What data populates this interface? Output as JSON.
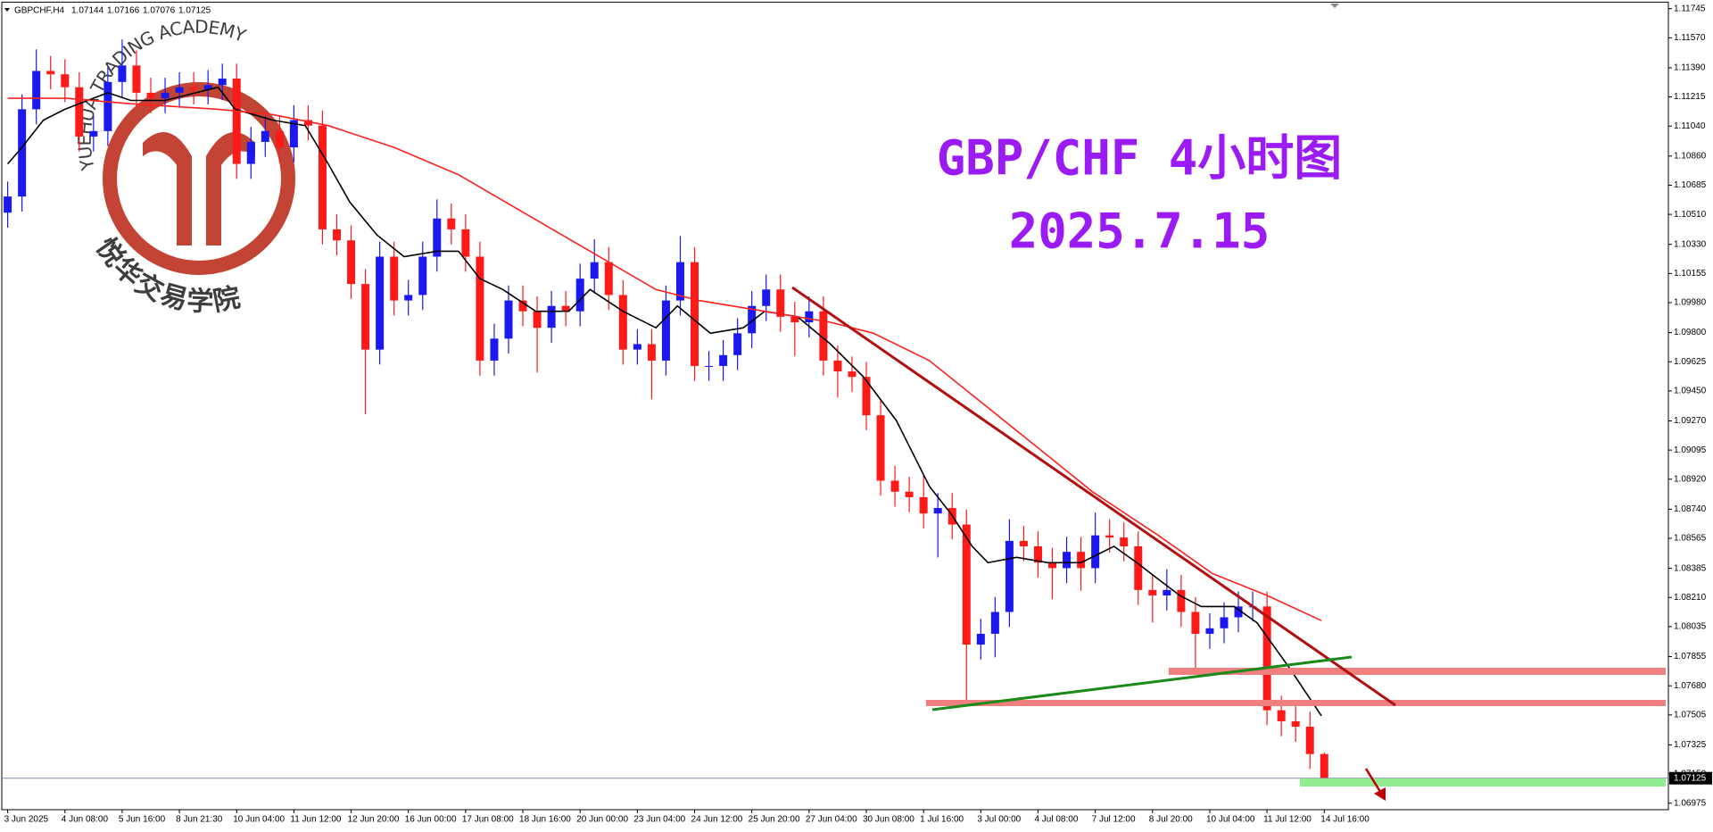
{
  "chart_data": {
    "type": "candlestick",
    "title": "GBP/CHF 4小时图",
    "subtitle": "2025.7.15",
    "header": {
      "symbol": "GBPCHF,H4",
      "open": 1.07144,
      "high": 1.07166,
      "low": 1.07076,
      "close": 1.07125
    },
    "watermark": {
      "text_en": "YUEHUA TRADING ACADEMY",
      "text_cn": "悦华交易学院"
    },
    "up_color": "#1a1af0",
    "down_color": "#ff1a1a",
    "categories": [
      "3 Jun 2025",
      null,
      null,
      null,
      "4 Jun 08:00",
      null,
      null,
      null,
      "5 Jun 16:00",
      null,
      null,
      null,
      "8 Jun 21:30",
      null,
      null,
      null,
      "10 Jun 04:00",
      null,
      null,
      null,
      "11 Jun 12:00",
      null,
      null,
      null,
      "12 Jun 20:00",
      null,
      null,
      null,
      "16 Jun 00:00",
      null,
      null,
      null,
      "17 Jun 08:00",
      null,
      null,
      null,
      "18 Jun 16:00",
      null,
      null,
      null,
      "20 Jun 00:00",
      null,
      null,
      null,
      "23 Jun 04:00",
      null,
      null,
      null,
      "24 Jun 12:00",
      null,
      null,
      null,
      "25 Jun 20:00",
      null,
      null,
      null,
      "27 Jun 04:00",
      null,
      null,
      null,
      "30 Jun 08:00",
      null,
      null,
      null,
      "1 Jul 16:00",
      null,
      null,
      null,
      "3 Jul 00:00",
      null,
      null,
      null,
      "4 Jul 08:00",
      null,
      null,
      null,
      "7 Jul 12:00",
      null,
      null,
      null,
      "8 Jul 20:00",
      null,
      null,
      null,
      "10 Jul 04:00",
      null,
      null,
      null,
      "11 Jul 12:00",
      null,
      null,
      null,
      "14 Jul 16:00"
    ],
    "open": [
      1.1052,
      1.10617,
      1.11141,
      1.11371,
      1.11351,
      1.11273,
      1.10977,
      1.1101,
      1.11305,
      1.11404,
      1.1124,
      1.11207,
      1.1124,
      1.11273,
      1.1126,
      1.11286,
      1.11325,
      1.10813,
      1.10945,
      1.1101,
      1.10912,
      1.11076,
      1.11043,
      1.1042,
      1.10354,
      1.10092,
      1.09698,
      1.10256,
      1.09993,
      1.10026,
      1.10256,
      1.10485,
      1.1042,
      1.10256,
      1.09632,
      1.09764,
      1.09993,
      1.09928,
      1.09829,
      1.0996,
      1.09928,
      1.10124,
      1.10223,
      1.10026,
      1.09698,
      1.09731,
      1.09632,
      1.09993,
      1.10223,
      1.096,
      1.096,
      1.09665,
      1.09796,
      1.0996,
      1.10059,
      1.09895,
      1.09862,
      1.09928,
      1.09632,
      1.09567,
      1.09534,
      1.09304,
      1.08911,
      1.08845,
      1.08812,
      1.08714,
      1.08747,
      1.08648,
      1.07927,
      1.07992,
      1.08123,
      1.0855,
      1.08517,
      1.08419,
      1.08386,
      1.08484,
      1.08386,
      1.08583,
      1.0857,
      1.08517,
      1.08255,
      1.08222,
      1.08255,
      1.08123,
      1.07992,
      1.08025,
      1.08091,
      1.08156,
      1.08156,
      1.07533,
      1.07467,
      1.07434,
      1.0727
    ],
    "high": [
      1.10707,
      1.11231,
      1.115,
      1.11461,
      1.11441,
      1.11363,
      1.111,
      1.11395,
      1.1156,
      1.11494,
      1.1133,
      1.1133,
      1.11363,
      1.11363,
      1.11376,
      1.11415,
      1.11415,
      1.11035,
      1.111,
      1.111,
      1.11166,
      1.11166,
      1.11133,
      1.1051,
      1.10444,
      1.10182,
      1.10346,
      1.10346,
      1.10116,
      1.10346,
      1.106,
      1.10575,
      1.1051,
      1.10346,
      1.09854,
      1.10083,
      1.10083,
      1.10018,
      1.1005,
      1.1005,
      1.10214,
      1.1036,
      1.10313,
      1.10116,
      1.09821,
      1.09821,
      1.10083,
      1.1038,
      1.10313,
      1.0969,
      1.09755,
      1.09886,
      1.1005,
      1.10149,
      1.10149,
      1.09985,
      1.10018,
      1.10018,
      1.09722,
      1.09657,
      1.09624,
      1.09394,
      1.09001,
      1.08935,
      1.0895,
      1.08837,
      1.08837,
      1.08738,
      1.08082,
      1.08213,
      1.0868,
      1.0864,
      1.08607,
      1.08509,
      1.08574,
      1.08574,
      1.0872,
      1.0868,
      1.0866,
      1.08607,
      1.08345,
      1.0838,
      1.08345,
      1.08213,
      1.08115,
      1.08181,
      1.08246,
      1.08246,
      1.08246,
      1.0762,
      1.07557,
      1.07524,
      1.0728
    ],
    "low": [
      1.1043,
      1.10527,
      1.11051,
      1.11261,
      1.11183,
      1.10887,
      1.10887,
      1.1092,
      1.11215,
      1.1115,
      1.11117,
      1.11117,
      1.1115,
      1.1117,
      1.1117,
      1.11196,
      1.10723,
      1.10723,
      1.10855,
      1.10822,
      1.10822,
      1.10953,
      1.1033,
      1.10264,
      1.10002,
      1.0931,
      1.09608,
      1.09903,
      1.09903,
      1.09936,
      1.10166,
      1.1033,
      1.10166,
      1.09542,
      1.09542,
      1.09674,
      1.09838,
      1.0956,
      1.09739,
      1.09838,
      1.09838,
      1.10034,
      1.09936,
      1.09608,
      1.09608,
      1.094,
      1.09542,
      1.09903,
      1.0951,
      1.0951,
      1.0951,
      1.09575,
      1.09706,
      1.0987,
      1.09805,
      1.0966,
      1.09772,
      1.09542,
      1.0941,
      1.09444,
      1.09214,
      1.08821,
      1.08755,
      1.08722,
      1.08624,
      1.0845,
      1.08558,
      1.0758,
      1.07837,
      1.0785,
      1.08033,
      1.08427,
      1.08329,
      1.082,
      1.08296,
      1.0825,
      1.08296,
      1.0848,
      1.08427,
      1.08165,
      1.0806,
      1.08132,
      1.08033,
      1.0778,
      1.07902,
      1.07935,
      1.08001,
      1.08066,
      1.07443,
      1.07377,
      1.07344,
      1.0718,
      1.07076
    ],
    "close": [
      1.10617,
      1.11141,
      1.11371,
      1.11351,
      1.11273,
      1.10977,
      1.1101,
      1.11305,
      1.11404,
      1.1124,
      1.11207,
      1.1124,
      1.11273,
      1.1126,
      1.11286,
      1.11325,
      1.10813,
      1.10945,
      1.1101,
      1.10912,
      1.11076,
      1.11043,
      1.1042,
      1.10354,
      1.10092,
      1.09698,
      1.10256,
      1.09993,
      1.10026,
      1.10256,
      1.10485,
      1.1042,
      1.10256,
      1.09632,
      1.09764,
      1.09993,
      1.09928,
      1.09829,
      1.0996,
      1.09928,
      1.10124,
      1.10223,
      1.10026,
      1.09698,
      1.09731,
      1.09632,
      1.09993,
      1.10223,
      1.096,
      1.096,
      1.09665,
      1.09796,
      1.0996,
      1.10059,
      1.09895,
      1.09862,
      1.09928,
      1.09632,
      1.09567,
      1.09534,
      1.09304,
      1.08911,
      1.08845,
      1.08812,
      1.08714,
      1.08747,
      1.08648,
      1.07927,
      1.07992,
      1.08123,
      1.0855,
      1.08517,
      1.08419,
      1.08386,
      1.08484,
      1.08386,
      1.08583,
      1.0857,
      1.08517,
      1.08255,
      1.08222,
      1.08255,
      1.08123,
      1.07992,
      1.08025,
      1.08091,
      1.08156,
      1.08156,
      1.07533,
      1.07467,
      1.07434,
      1.0727,
      1.07125
    ],
    "indicators": [
      {
        "color": "#000000",
        "x": [
          0,
          1,
          2.5,
          4,
          7,
          8.6,
          11,
          14.7,
          15.9,
          18.5,
          20.8,
          22.4,
          23.9,
          25.8,
          27.7,
          30,
          31.5,
          33,
          34.6,
          36.9,
          39.2,
          40.7,
          43,
          45.3,
          46.8,
          49.1,
          51.4,
          52.9,
          55.2,
          57.5,
          59.8,
          62.1,
          64.4,
          65.9,
          67.4,
          68.5,
          70.5,
          72.7,
          75,
          77.3,
          78.9,
          80.4,
          81.9,
          83.4,
          85.7,
          87.3,
          89.5,
          91.8
        ],
        "values": [
          1.10813,
          1.10912,
          1.11076,
          1.11141,
          1.1124,
          1.11194,
          1.11194,
          1.11273,
          1.11141,
          1.11076,
          1.11043,
          1.10813,
          1.10584,
          1.10387,
          1.10256,
          1.10289,
          1.10289,
          1.10124,
          1.10059,
          1.09928,
          1.09928,
          1.10059,
          1.09928,
          1.09829,
          1.0996,
          1.09796,
          1.09829,
          1.09928,
          1.09895,
          1.09731,
          1.09534,
          1.09272,
          1.08878,
          1.08714,
          1.08517,
          1.08419,
          1.08451,
          1.08419,
          1.08419,
          1.08517,
          1.08419,
          1.0832,
          1.08222,
          1.08156,
          1.08156,
          1.08058,
          1.07795,
          1.075
        ]
      },
      {
        "color": "#ff2020",
        "x": [
          0,
          4.1,
          8.6,
          14.7,
          18.5,
          22.4,
          27,
          31.5,
          36.1,
          40.7,
          45.3,
          48.3,
          52.9,
          57.5,
          60.5,
          64.4,
          68.2,
          72,
          75.8,
          80.4,
          84.2,
          88,
          91.8
        ],
        "values": [
          1.11207,
          1.11207,
          1.11174,
          1.11141,
          1.11109,
          1.11043,
          1.10912,
          1.10748,
          1.10518,
          1.10289,
          1.10059,
          1.09993,
          1.09928,
          1.09862,
          1.09796,
          1.09632,
          1.0937,
          1.09108,
          1.08845,
          1.08583,
          1.08353,
          1.08222,
          1.08071
        ]
      }
    ],
    "ylim": [
      1.06936,
      1.11784
    ],
    "yticks": [
      1.11745,
      {
        "value": 1.1157,
        "label": "1.11570"
      },
      {
        "value": 1.1139,
        "label": "1.11390"
      },
      1.11215,
      {
        "value": 1.1104,
        "label": "1.11040"
      },
      {
        "value": 1.1086,
        "label": "1.10860"
      },
      1.10685,
      {
        "value": 1.1051,
        "label": "1.10510"
      },
      {
        "value": 1.1033,
        "label": "1.10330"
      },
      1.10155,
      {
        "value": 1.0998,
        "label": "1.09980"
      },
      {
        "value": 1.098,
        "label": "1.09800"
      },
      1.09625,
      {
        "value": 1.0945,
        "label": "1.09450"
      },
      {
        "value": 1.0927,
        "label": "1.09270"
      },
      1.09095,
      {
        "value": 1.0892,
        "label": "1.08920"
      },
      {
        "value": 1.0874,
        "label": "1.08740"
      },
      1.08565,
      1.08385,
      {
        "value": 1.0821,
        "label": "1.08210"
      },
      1.08035,
      1.07855,
      {
        "value": 1.0768,
        "label": "1.07680"
      },
      1.07505,
      1.07325,
      {
        "value": 1.0715,
        "label": "1.07150"
      },
      1.06975
    ]
  }
}
